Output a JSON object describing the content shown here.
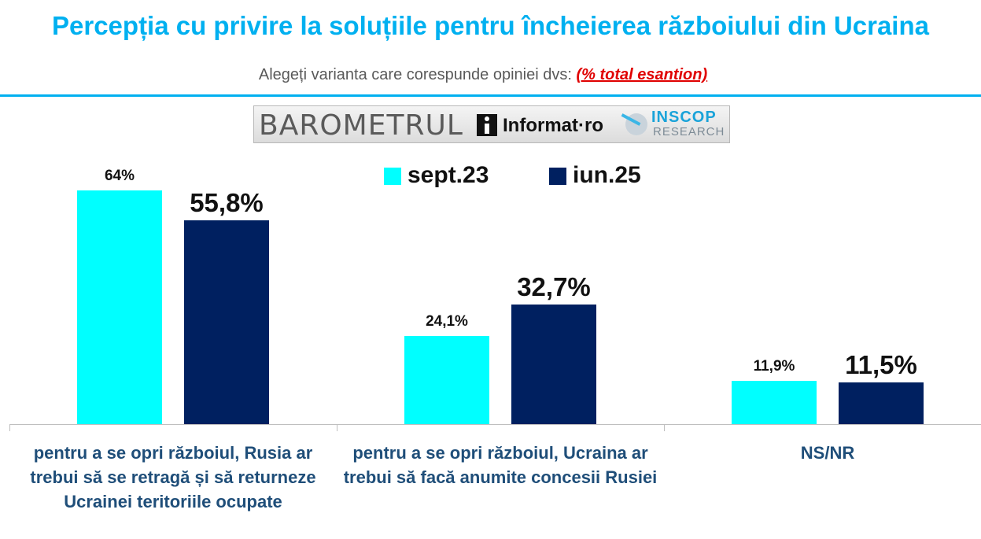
{
  "title": "Percepția cu privire la soluțiile pentru încheierea războiului din Ucraina",
  "subtitle": {
    "text": "Alegeți varianta care corespunde opiniei dvs: ",
    "note": "(% total esantion)"
  },
  "logo": {
    "barometrul": "BAROMETRUL",
    "informat": "Informat·ro",
    "inscop": "INSCOP",
    "research": "RESEARCH"
  },
  "colors": {
    "title": "#00b0f0",
    "sept23": "#00ffff",
    "iun25": "#002060",
    "category_text": "#1f4e79",
    "note": "#e00000"
  },
  "chart_data": {
    "type": "bar",
    "categories": [
      "pentru a se opri războiul, Rusia ar trebui să se retragă și să returneze Ucrainei teritoriile ocupate",
      "pentru a se opri războiul, Ucraina ar trebui să facă anumite concesii Rusiei",
      "NS/NR"
    ],
    "series": [
      {
        "name": "sept.23",
        "color": "#00ffff",
        "values": [
          64,
          24.1,
          11.9
        ],
        "labels": [
          "64%",
          "24,1%",
          "11,9%"
        ]
      },
      {
        "name": "iun.25",
        "color": "#002060",
        "values": [
          55.8,
          32.7,
          11.5
        ],
        "labels": [
          "55,8%",
          "32,7%",
          "11,5%"
        ]
      }
    ],
    "ylim": [
      0,
      70
    ],
    "grid": false,
    "legend_position": "top-center",
    "xlabel": "",
    "ylabel": ""
  }
}
